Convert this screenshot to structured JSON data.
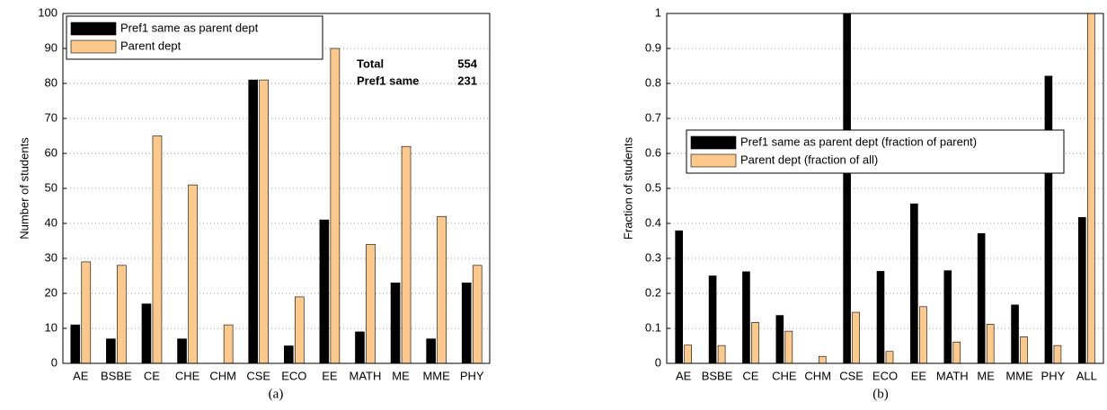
{
  "chart_data": [
    {
      "type": "bar",
      "ylabel": "Number of students",
      "caption": "(a)",
      "categories": [
        "AE",
        "BSBE",
        "CE",
        "CHE",
        "CHM",
        "CSE",
        "ECO",
        "EE",
        "MATH",
        "ME",
        "MME",
        "PHY"
      ],
      "series": [
        {
          "name": "Pref1 same as parent dept",
          "color": "#000000",
          "values": [
            11,
            7,
            17,
            7,
            0,
            81,
            5,
            41,
            9,
            23,
            7,
            23
          ]
        },
        {
          "name": "Parent dept",
          "color": "#fcc98b",
          "values": [
            29,
            28,
            65,
            51,
            11,
            81,
            19,
            90,
            34,
            62,
            42,
            28
          ]
        }
      ],
      "annotations": [
        {
          "label": "Total",
          "value": 554
        },
        {
          "label": "Pref1 same",
          "value": 231
        }
      ],
      "ylim": [
        0,
        100
      ],
      "yticks": [
        0,
        10,
        20,
        30,
        40,
        50,
        60,
        70,
        80,
        90,
        100
      ],
      "grid": true,
      "legend": "upper left"
    },
    {
      "type": "bar",
      "ylabel": "Fraction of students",
      "caption": "(b)",
      "categories": [
        "AE",
        "BSBE",
        "CE",
        "CHE",
        "CHM",
        "CSE",
        "ECO",
        "EE",
        "MATH",
        "ME",
        "MME",
        "PHY",
        "ALL"
      ],
      "series": [
        {
          "name": "Pref1 same as parent dept (fraction of parent)",
          "color": "#000000",
          "values": [
            0.379,
            0.25,
            0.262,
            0.137,
            0,
            1,
            0.263,
            0.456,
            0.265,
            0.371,
            0.167,
            0.821,
            0.417
          ]
        },
        {
          "name": "Parent dept (fraction of all)",
          "color": "#fcc98b",
          "values": [
            0.052,
            0.051,
            0.117,
            0.092,
            0.02,
            0.146,
            0.034,
            0.162,
            0.061,
            0.112,
            0.076,
            0.051,
            1
          ]
        }
      ],
      "ylim": [
        0,
        1
      ],
      "yticks": [
        0,
        0.1,
        0.2,
        0.3,
        0.4,
        0.5,
        0.6,
        0.7,
        0.8,
        0.9,
        1
      ],
      "grid": true,
      "legend": "center left"
    }
  ]
}
